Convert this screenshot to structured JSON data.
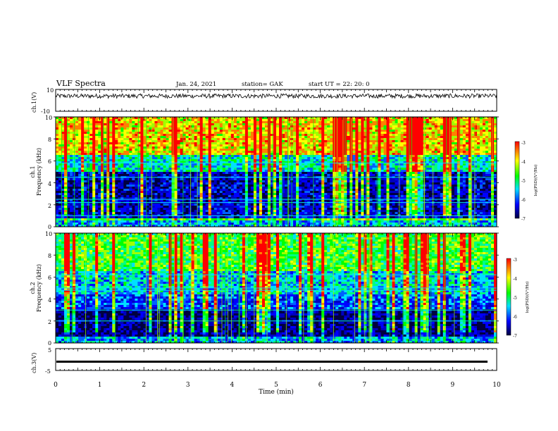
{
  "header": {
    "title": "VLF Spectra",
    "date": "Jan. 24, 2021",
    "station": "station= GAK",
    "start": "start  UT =   22: 20: 0"
  },
  "chart_data": [
    {
      "type": "line",
      "panel": "ch1-waveform",
      "ylabel": "ch.1(V)",
      "yticks": [
        "10",
        "-10"
      ],
      "ylim": [
        -10,
        10
      ],
      "approx_baseline": 4,
      "approx_noise_amplitude": 2
    },
    {
      "type": "heatmap",
      "panel": "ch1-spectrogram",
      "ylabel_line1": "ch.1",
      "ylabel_line2": "Frequency (kHz)",
      "yticks": [
        "0",
        "2",
        "4",
        "6",
        "8",
        "10"
      ],
      "ylim": [
        0,
        10
      ],
      "colorbar": {
        "label": "log(PSD)(V²/Hz)",
        "ticks": [
          "-3",
          "-4",
          "-5",
          "-6",
          "-7"
        ],
        "range": [
          -7,
          -3
        ]
      },
      "bands": [
        {
          "from": 0,
          "to": 0.5,
          "level": 0.35
        },
        {
          "from": 0.5,
          "to": 0.75,
          "level": 0.6
        },
        {
          "from": 0.75,
          "to": 1.0,
          "level": 0.15
        },
        {
          "from": 1.0,
          "to": 5.0,
          "level": 0.12
        },
        {
          "from": 5.0,
          "to": 6.5,
          "level": 0.45
        },
        {
          "from": 6.5,
          "to": 10.0,
          "level": 0.8
        }
      ],
      "lines_khz": [
        1.0,
        2.2,
        2.5,
        4.5,
        5.8
      ]
    },
    {
      "type": "heatmap",
      "panel": "ch2-spectrogram",
      "ylabel_line1": "ch.2",
      "ylabel_line2": "Frequency (kHz)",
      "yticks": [
        "0",
        "2",
        "4",
        "6",
        "8",
        "10"
      ],
      "ylim": [
        0,
        10
      ],
      "colorbar": {
        "label": "log(PSD)(V²/Hz)",
        "ticks": [
          "-3",
          "-4",
          "-5",
          "-6",
          "-7"
        ],
        "range": [
          -7,
          -3
        ]
      },
      "bands": [
        {
          "from": 0,
          "to": 0.5,
          "level": 0.35
        },
        {
          "from": 0.5,
          "to": 3.0,
          "level": 0.05
        },
        {
          "from": 3.0,
          "to": 4.5,
          "level": 0.25
        },
        {
          "from": 4.5,
          "to": 6.5,
          "level": 0.4
        },
        {
          "from": 6.5,
          "to": 10.0,
          "level": 0.6
        }
      ],
      "lines_khz": [
        2.0,
        3.0,
        4.8,
        5.0,
        6.2
      ]
    },
    {
      "type": "line",
      "panel": "ch3-waveform",
      "ylabel": "ch.3(V)",
      "yticks": [
        "5",
        "-5"
      ],
      "ylim": [
        -5,
        5
      ],
      "approx_baseline": -1
    }
  ],
  "xaxis": {
    "label": "Time (min)",
    "ticks": [
      "0",
      "1",
      "2",
      "3",
      "4",
      "5",
      "6",
      "7",
      "8",
      "9",
      "10"
    ],
    "range": [
      0,
      10
    ]
  },
  "colors": {
    "dark": "#000040",
    "blue": "#0000ff",
    "cyan": "#00e0ff",
    "green": "#00ff00",
    "yellow": "#ffff00",
    "red": "#ff0000"
  }
}
